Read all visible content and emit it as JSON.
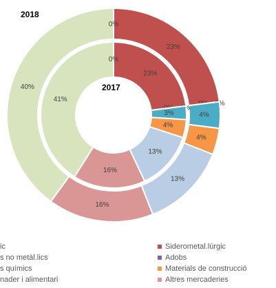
{
  "chart_data": {
    "type": "donut",
    "categories": [
      "Siderometal.lúrgic",
      "Adobs",
      null,
      null,
      "Materials de construcció",
      null,
      "Altres mercaderies",
      null,
      null
    ],
    "colors": [
      "#c0504d",
      "#8064a2",
      "#9bbb59",
      "#4bacc6",
      "#f79646",
      "#b9cde5",
      "#d99694",
      "#d7e4bd",
      "#4f81bd"
    ],
    "series": [
      {
        "name": "2018",
        "values": [
          23,
          0,
          0,
          4,
          4,
          13,
          16,
          40,
          0
        ],
        "value_labels": [
          "23%",
          "0%",
          "0%",
          "4%",
          "4%",
          "13%",
          "16%",
          "40%",
          "0%"
        ]
      },
      {
        "name": "2017",
        "values": [
          23,
          0,
          0,
          3,
          4,
          13,
          16,
          41,
          0
        ],
        "value_labels": [
          "23%",
          "0%",
          "0%",
          "3%",
          "4%",
          "13%",
          "16%",
          "41%",
          "0%"
        ]
      }
    ],
    "legend_left": [
      "ic",
      "s no metàl.lics",
      "s químics",
      "nader i alimentari"
    ],
    "legend_right": [
      {
        "name": "Siderometal.lúrgic",
        "color": "#c0504d"
      },
      {
        "name": "Adobs",
        "color": "#8064a2"
      },
      {
        "name": "Materials de construcció",
        "color": "#f79646"
      },
      {
        "name": "Altres mercaderies",
        "color": "#d99694"
      }
    ]
  }
}
